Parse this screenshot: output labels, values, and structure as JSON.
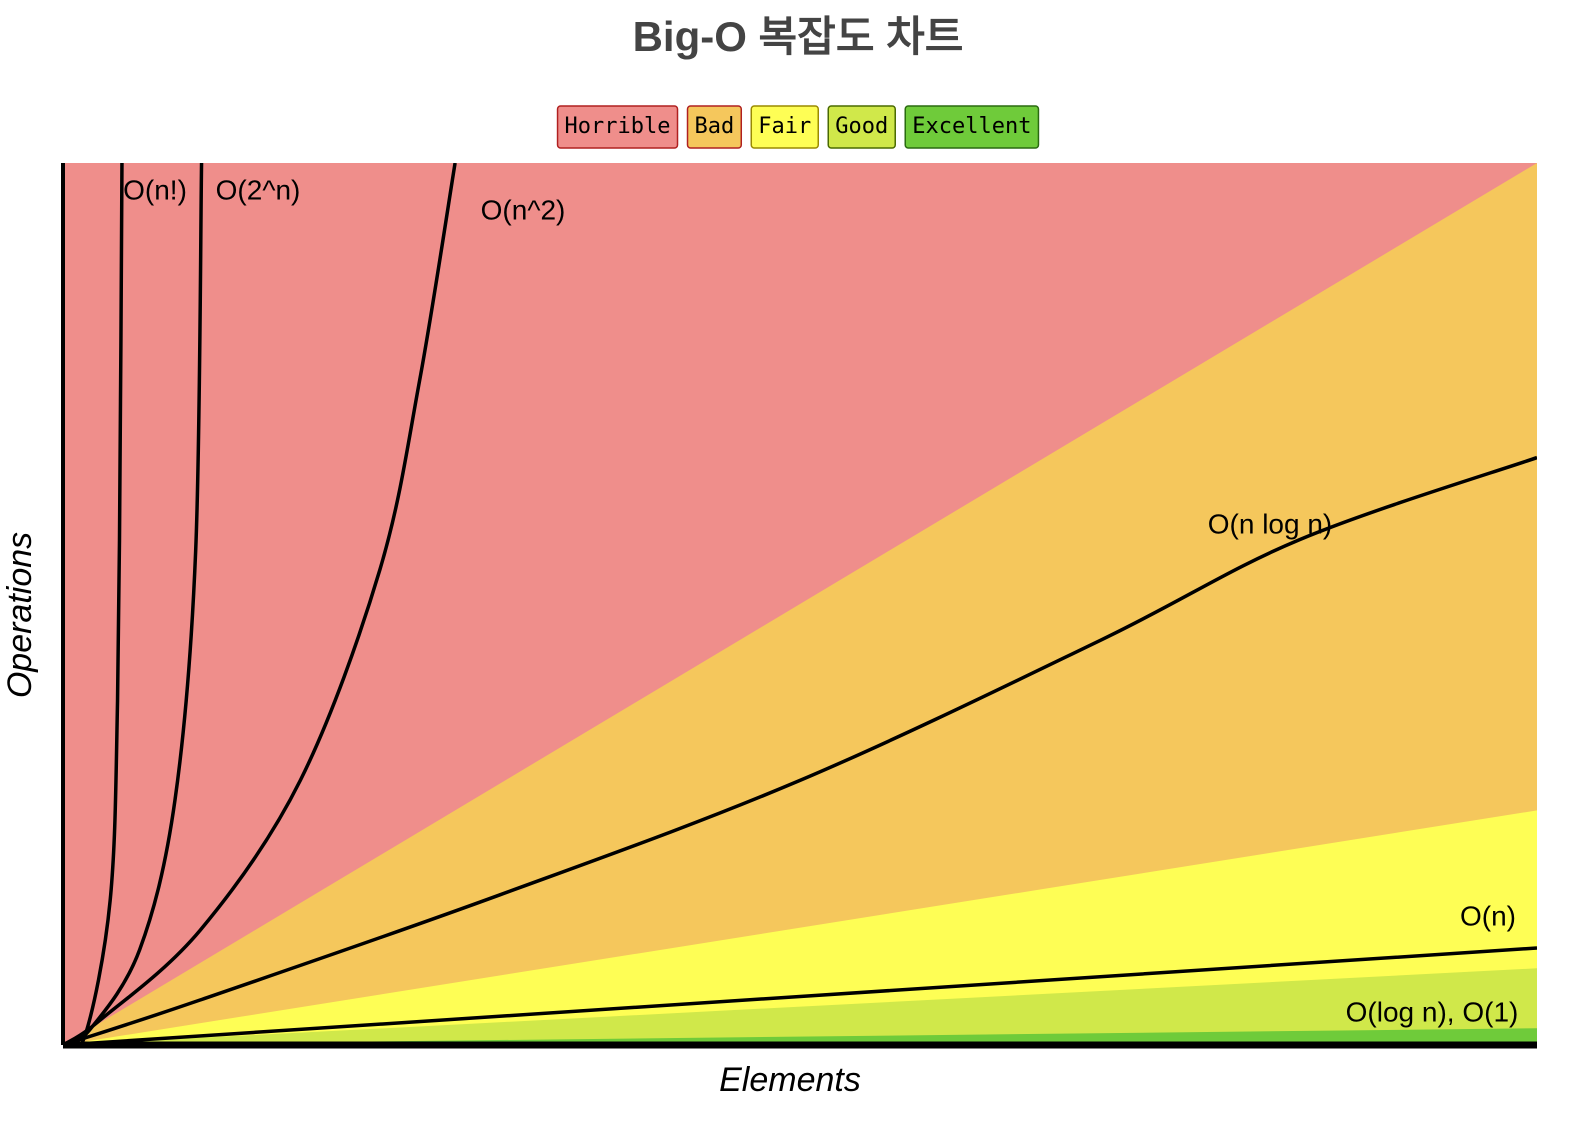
{
  "chart_data": {
    "type": "line",
    "title": "Big-O 복잡도 차트",
    "x_label": "Elements",
    "y_label": "Operations",
    "xlim": [
      0,
      100
    ],
    "ylim": [
      0,
      100
    ],
    "zones": [
      {
        "name": "Horrible",
        "color": "#ef8e8b",
        "border": "#b02020"
      },
      {
        "name": "Bad",
        "color": "#f5c75c",
        "border": "#b02020",
        "x": [
          0,
          100
        ],
        "values": [
          0,
          100
        ]
      },
      {
        "name": "Fair",
        "color": "#fefe55",
        "border": "#9a8a00",
        "x": [
          0,
          100
        ],
        "values": [
          0,
          26.6
        ]
      },
      {
        "name": "Good",
        "color": "#d0e84a",
        "border": "#4a6a00",
        "x": [
          0,
          100
        ],
        "values": [
          0,
          8.7
        ]
      },
      {
        "name": "Excellent",
        "color": "#6fcb3a",
        "border": "#2a6a10",
        "x": [
          0,
          100
        ],
        "values": [
          0,
          1.9
        ]
      }
    ],
    "series": [
      {
        "name": "O(n!)",
        "color": "#000000",
        "x": [
          0,
          1.5,
          3.2,
          3.7,
          3.9,
          4.0
        ],
        "values": [
          0,
          1.1,
          16.4,
          39,
          73,
          100
        ]
      },
      {
        "name": "O(2^n)",
        "color": "#000000",
        "x": [
          0,
          1.8,
          5.2,
          7.6,
          9.0,
          9.4
        ],
        "values": [
          0,
          1.7,
          10.8,
          27.8,
          56,
          100
        ]
      },
      {
        "name": "O(n^2)",
        "color": "#000000",
        "x": [
          0,
          2.5,
          9.3,
          16.1,
          21.5,
          24.2,
          26.6
        ],
        "values": [
          0,
          2.8,
          13,
          30,
          53.9,
          75.4,
          100
        ]
      },
      {
        "name": "O(n log n)",
        "color": "#000000",
        "x": [
          0,
          9.3,
          29.6,
          50,
          70.4,
          83.9,
          100
        ],
        "values": [
          0,
          5.1,
          17,
          30,
          45.9,
          57.3,
          66.6
        ]
      },
      {
        "name": "O(n)",
        "color": "#000000",
        "x": [
          0,
          100
        ],
        "values": [
          0,
          11
        ]
      }
    ],
    "annotations": [
      "O(log n), O(1)"
    ]
  }
}
